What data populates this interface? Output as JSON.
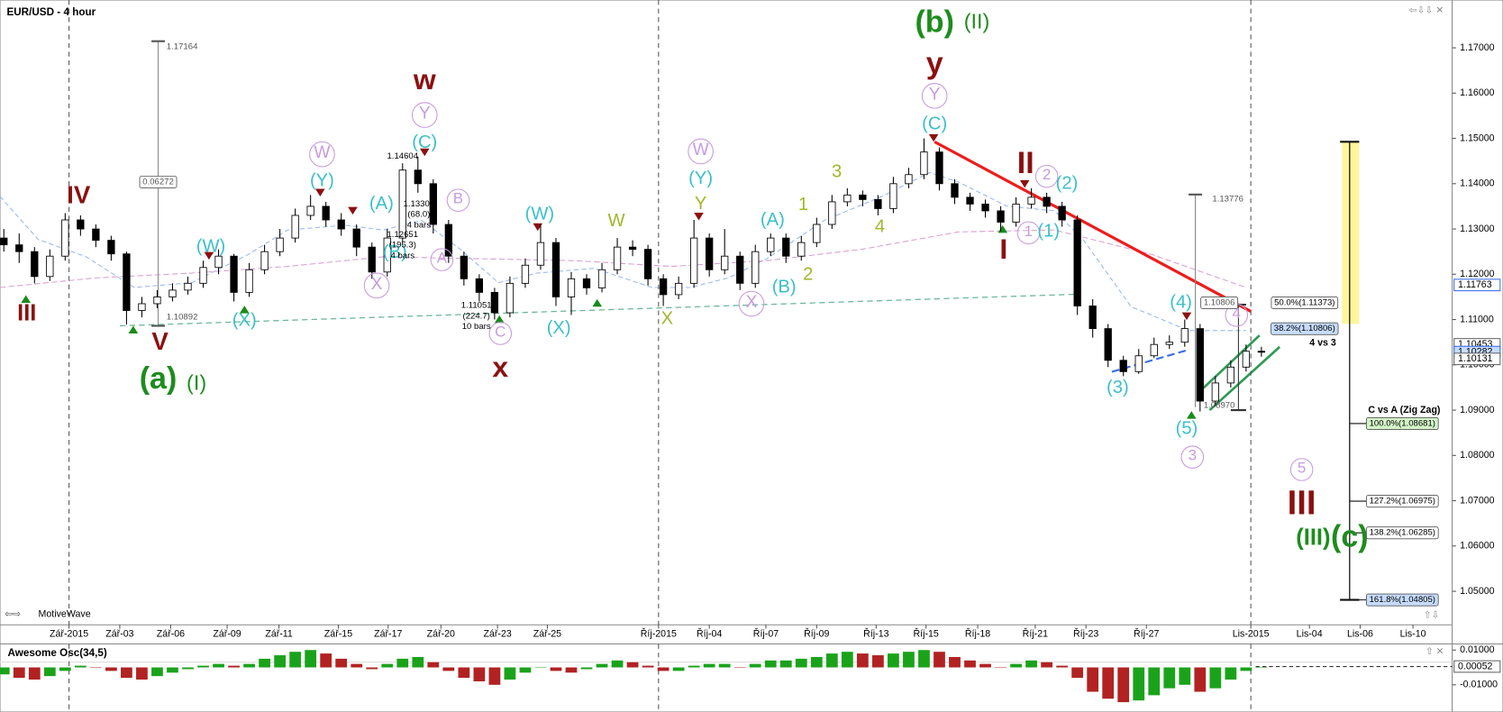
{
  "chart_data": {
    "type": "candlestick",
    "title": "EUR/USD - 4 hour",
    "watermark": "MotiveWave",
    "x": [
      0,
      1,
      2,
      3,
      4,
      5,
      6,
      7,
      8,
      9,
      10,
      11,
      12,
      13,
      14,
      15,
      16,
      17,
      18,
      19,
      20,
      21,
      22,
      23,
      24,
      25,
      26,
      27,
      28,
      29,
      30,
      31,
      32,
      33,
      34,
      35,
      36,
      37,
      38,
      39,
      40,
      41,
      42,
      43,
      44,
      45,
      46,
      47,
      48,
      49,
      50,
      51,
      52,
      53,
      54,
      55,
      56,
      57,
      58,
      59,
      60,
      61,
      62,
      63,
      64,
      65,
      66,
      67,
      68,
      69,
      70,
      71,
      72,
      73,
      74,
      75,
      76,
      77,
      78,
      79,
      80,
      81,
      82
    ],
    "open": [
      1.128,
      1.1265,
      1.125,
      1.1195,
      1.124,
      1.132,
      1.13,
      1.1275,
      1.1245,
      1.112,
      1.1135,
      1.115,
      1.1165,
      1.118,
      1.1215,
      1.124,
      1.116,
      1.121,
      1.125,
      1.128,
      1.133,
      1.135,
      1.132,
      1.13,
      1.126,
      1.1205,
      1.128,
      1.143,
      1.14,
      1.131,
      1.124,
      1.119,
      1.116,
      1.1115,
      1.118,
      1.122,
      1.127,
      1.115,
      1.119,
      1.117,
      1.121,
      1.126,
      1.1255,
      1.119,
      1.1155,
      1.118,
      1.128,
      1.121,
      1.124,
      1.118,
      1.125,
      1.128,
      1.124,
      1.127,
      1.131,
      1.136,
      1.1375,
      1.1365,
      1.1345,
      1.14,
      1.142,
      1.147,
      1.14,
      1.137,
      1.1355,
      1.134,
      1.1315,
      1.1355,
      1.137,
      1.135,
      1.132,
      1.113,
      1.108,
      1.101,
      1.0985,
      1.102,
      1.1045,
      1.105,
      1.108,
      1.092,
      1.096,
      1.0995,
      1.103
    ],
    "high": [
      1.13,
      1.129,
      1.126,
      1.1255,
      1.1335,
      1.133,
      1.131,
      1.1285,
      1.125,
      1.115,
      1.1165,
      1.118,
      1.1195,
      1.123,
      1.1255,
      1.1245,
      1.1225,
      1.1265,
      1.13,
      1.1345,
      1.1375,
      1.136,
      1.1335,
      1.131,
      1.127,
      1.13,
      1.1445,
      1.146,
      1.141,
      1.132,
      1.125,
      1.12,
      1.117,
      1.1195,
      1.1235,
      1.131,
      1.128,
      1.1205,
      1.12,
      1.1225,
      1.128,
      1.1275,
      1.1265,
      1.12,
      1.1195,
      1.132,
      1.129,
      1.13,
      1.125,
      1.1265,
      1.129,
      1.129,
      1.1285,
      1.1325,
      1.1375,
      1.139,
      1.1385,
      1.1375,
      1.1415,
      1.1435,
      1.15,
      1.148,
      1.141,
      1.138,
      1.1365,
      1.135,
      1.137,
      1.139,
      1.138,
      1.136,
      1.133,
      1.1145,
      1.109,
      1.102,
      1.1035,
      1.106,
      1.1065,
      1.11,
      1.109,
      1.0975,
      1.101,
      1.1045,
      1.104
    ],
    "low": [
      1.125,
      1.1225,
      1.118,
      1.1185,
      1.123,
      1.1285,
      1.126,
      1.123,
      1.1089,
      1.1105,
      1.1125,
      1.114,
      1.1155,
      1.117,
      1.12,
      1.114,
      1.115,
      1.12,
      1.124,
      1.127,
      1.132,
      1.1305,
      1.1285,
      1.124,
      1.119,
      1.1195,
      1.127,
      1.138,
      1.129,
      1.1225,
      1.1175,
      1.114,
      1.11,
      1.1105,
      1.117,
      1.121,
      1.113,
      1.111,
      1.1155,
      1.116,
      1.12,
      1.124,
      1.1175,
      1.113,
      1.1145,
      1.117,
      1.1195,
      1.12,
      1.1165,
      1.117,
      1.124,
      1.1225,
      1.123,
      1.126,
      1.13,
      1.135,
      1.135,
      1.133,
      1.1335,
      1.139,
      1.141,
      1.1385,
      1.1355,
      1.134,
      1.1325,
      1.1295,
      1.1305,
      1.1345,
      1.1335,
      1.1305,
      1.111,
      1.106,
      1.0995,
      1.0975,
      1.098,
      1.1015,
      1.1035,
      1.104,
      1.0897,
      1.091,
      1.095,
      1.0985,
      1.1018
    ],
    "close": [
      1.1265,
      1.125,
      1.1195,
      1.124,
      1.132,
      1.13,
      1.1275,
      1.1245,
      1.112,
      1.1135,
      1.115,
      1.1165,
      1.118,
      1.1215,
      1.124,
      1.116,
      1.121,
      1.125,
      1.128,
      1.133,
      1.135,
      1.132,
      1.13,
      1.126,
      1.1205,
      1.128,
      1.143,
      1.14,
      1.131,
      1.124,
      1.119,
      1.116,
      1.1115,
      1.118,
      1.122,
      1.127,
      1.115,
      1.119,
      1.117,
      1.121,
      1.126,
      1.1255,
      1.119,
      1.1155,
      1.118,
      1.128,
      1.121,
      1.124,
      1.118,
      1.125,
      1.128,
      1.124,
      1.127,
      1.131,
      1.136,
      1.1375,
      1.1365,
      1.1345,
      1.14,
      1.142,
      1.147,
      1.14,
      1.137,
      1.1355,
      1.134,
      1.1315,
      1.1355,
      1.137,
      1.135,
      1.132,
      1.113,
      1.108,
      1.101,
      1.0985,
      1.102,
      1.1045,
      1.105,
      1.108,
      1.092,
      1.096,
      1.0995,
      1.103,
      1.1028
    ],
    "up_color": "#ffffff",
    "down_color": "#000000",
    "xlim": [
      -0.25,
      94.44
    ],
    "xticks": [
      {
        "value": 4.25,
        "label": "Zář-2015"
      },
      {
        "value": 7.56,
        "label": "Zář-03"
      },
      {
        "value": 10.88,
        "label": "Zář-06"
      },
      {
        "value": 14.56,
        "label": "Zář-09"
      },
      {
        "value": 17.94,
        "label": "Zář-11"
      },
      {
        "value": 21.81,
        "label": "Zář-15"
      },
      {
        "value": 25.06,
        "label": "Zář-17"
      },
      {
        "value": 28.5,
        "label": "Zář-20"
      },
      {
        "value": 32.19,
        "label": "Zář-23"
      },
      {
        "value": 35.44,
        "label": "Zář-25"
      },
      {
        "value": 42.69,
        "label": "Říj-2015"
      },
      {
        "value": 46,
        "label": "Říj-04"
      },
      {
        "value": 49.69,
        "label": "Říj-07"
      },
      {
        "value": 53,
        "label": "Říj-09"
      },
      {
        "value": 56.88,
        "label": "Říj-13"
      },
      {
        "value": 60.13,
        "label": "Říj-15"
      },
      {
        "value": 63.5,
        "label": "Říj-18"
      },
      {
        "value": 67.25,
        "label": "Říj-21"
      },
      {
        "value": 70.56,
        "label": "Říj-23"
      },
      {
        "value": 74.5,
        "label": "Říj-27"
      },
      {
        "value": 81.31,
        "label": "Lis-2015"
      },
      {
        "value": 85.13,
        "label": "Lis-04"
      },
      {
        "value": 88.44,
        "label": "Lis-06"
      },
      {
        "value": 91.88,
        "label": "Lis-10"
      }
    ],
    "ylim": [
      1.0426,
      1.1795
    ],
    "yticks": [
      {
        "value": 1.05,
        "label": "1.05000"
      },
      {
        "value": 1.06,
        "label": "1.06000"
      },
      {
        "value": 1.07,
        "label": "1.07000"
      },
      {
        "value": 1.08,
        "label": "1.08000"
      },
      {
        "value": 1.09,
        "label": "1.09000"
      },
      {
        "value": 1.1,
        "label": "1.10000"
      },
      {
        "value": 1.11,
        "label": "1.11000"
      },
      {
        "value": 1.12,
        "label": "1.12000"
      },
      {
        "value": 1.13,
        "label": "1.13000"
      },
      {
        "value": 1.14,
        "label": "1.14000"
      },
      {
        "value": 1.15,
        "label": "1.15000"
      },
      {
        "value": 1.16,
        "label": "1.16000"
      },
      {
        "value": 1.17,
        "label": "1.17000"
      }
    ],
    "price_markers": [
      {
        "value": 1.11763,
        "label": "1.11763"
      },
      {
        "value": 1.10453,
        "label": "1.10453"
      },
      {
        "value": 1.10282,
        "label": "1.10282"
      },
      {
        "value": 1.10131,
        "label": "1.10131"
      }
    ],
    "annotations": [
      {
        "text": "IV",
        "color": "#8b1010"
      },
      {
        "text": "III",
        "color": "#8b1010"
      },
      {
        "text": "V",
        "color": "#8b1010"
      },
      {
        "text": "(a)",
        "color": "#1e8c1e"
      },
      {
        "text": "(I)",
        "color": "#1e8c1e"
      },
      {
        "text": "(W)",
        "color": "#3bbfc9"
      },
      {
        "text": "(X)",
        "color": "#3bbfc9"
      },
      {
        "text": "W",
        "color": "#c79be0"
      },
      {
        "text": "(Y)",
        "color": "#3bbfc9"
      },
      {
        "text": "X",
        "color": "#c79be0"
      },
      {
        "text": "(A)",
        "color": "#3bbfc9"
      },
      {
        "text": "(B)",
        "color": "#3bbfc9"
      },
      {
        "text": "w",
        "color": "#8b1010"
      },
      {
        "text": "Y",
        "color": "#c79be0"
      },
      {
        "text": "(C)",
        "color": "#3bbfc9"
      },
      {
        "text": "B",
        "color": "#c79be0"
      },
      {
        "text": "A",
        "color": "#c79be0"
      },
      {
        "text": "x",
        "color": "#8b1010"
      },
      {
        "text": "C",
        "color": "#c79be0"
      },
      {
        "text": "(W)",
        "color": "#3bbfc9"
      },
      {
        "text": "(X)",
        "color": "#3bbfc9"
      },
      {
        "text": "W",
        "color": "#a3b52a"
      },
      {
        "text": "X",
        "color": "#a3b52a"
      },
      {
        "text": "W",
        "color": "#c79be0"
      },
      {
        "text": "(Y)",
        "color": "#3bbfc9"
      },
      {
        "text": "Y",
        "color": "#a3b52a"
      },
      {
        "text": "(A)",
        "color": "#3bbfc9"
      },
      {
        "text": "X",
        "color": "#c79be0"
      },
      {
        "text": "(B)",
        "color": "#3bbfc9"
      },
      {
        "text": "1",
        "color": "#a3b52a"
      },
      {
        "text": "2",
        "color": "#a3b52a"
      },
      {
        "text": "3",
        "color": "#a3b52a"
      },
      {
        "text": "4",
        "color": "#a3b52a"
      },
      {
        "text": "(b)",
        "color": "#1e8c1e"
      },
      {
        "text": "(II)",
        "color": "#1e8c1e"
      },
      {
        "text": "y",
        "color": "#8b1010"
      },
      {
        "text": "Y",
        "color": "#c79be0"
      },
      {
        "text": "(C)",
        "color": "#3bbfc9"
      },
      {
        "text": "II",
        "color": "#8b1010"
      },
      {
        "text": "2",
        "color": "#c79be0"
      },
      {
        "text": "(2)",
        "color": "#3bbfc9"
      },
      {
        "text": "1",
        "color": "#c79be0"
      },
      {
        "text": "(1)",
        "color": "#3bbfc9"
      },
      {
        "text": "I",
        "color": "#8b1010"
      },
      {
        "text": "(3)",
        "color": "#3bbfc9"
      },
      {
        "text": "(4)",
        "color": "#3bbfc9"
      },
      {
        "text": "(5)",
        "color": "#3bbfc9"
      },
      {
        "text": "3",
        "color": "#c79be0"
      },
      {
        "text": "4",
        "color": "#c79be0"
      },
      {
        "text": "5",
        "color": "#c79be0"
      },
      {
        "text": "III",
        "color": "#8b1010"
      },
      {
        "text": "(III)",
        "color": "#1e8c1e"
      },
      {
        "text": "(c)",
        "color": "#1e8c1e"
      },
      {
        "text": "1.17164",
        "color": "#555555"
      },
      {
        "text": "0.06272",
        "color": "#555555"
      },
      {
        "text": "1.10892",
        "color": "#555555"
      },
      {
        "text": "1.14604",
        "color": "#000000"
      },
      {
        "text": "1.13301",
        "color": "#000000"
      },
      {
        "text": "(68.0)",
        "color": "#000000"
      },
      {
        "text": "4 bars",
        "color": "#000000"
      },
      {
        "text": "1.12651",
        "color": "#000000"
      },
      {
        "text": "(195.3)",
        "color": "#000000"
      },
      {
        "text": "4 bars",
        "color": "#000000"
      },
      {
        "text": "1.11051",
        "color": "#000000"
      },
      {
        "text": "(224.7)",
        "color": "#000000"
      },
      {
        "text": "10 bars",
        "color": "#000000"
      },
      {
        "text": "1.13776",
        "color": "#555555"
      },
      {
        "text": "1.10806",
        "color": "#555555"
      },
      {
        "text": "1.08970",
        "color": "#555555"
      },
      {
        "text": "50.0%(1.11373)",
        "color": "#000000"
      },
      {
        "text": "38.2%(1.10806)",
        "color": "#000000"
      },
      {
        "text": "4 vs 3",
        "color": "#000000"
      },
      {
        "text": "C vs A (Zig Zag)",
        "color": "#000000"
      },
      {
        "text": "100.0%(1.08681)",
        "color": "#000000"
      },
      {
        "text": "127.2%(1.06975)",
        "color": "#000000"
      },
      {
        "text": "138.2%(1.06285)",
        "color": "#000000"
      },
      {
        "text": "161.8%(1.04805)",
        "color": "#000000"
      }
    ],
    "oscillator": {
      "title": "Awesome Osc(34,5)",
      "values": [
        -0.004,
        -0.006,
        -0.007,
        -0.005,
        -0.002,
        0.001,
        0.0,
        -0.002,
        -0.006,
        -0.007,
        -0.005,
        -0.003,
        -0.001,
        0.001,
        0.002,
        0.001,
        0.002,
        0.005,
        0.007,
        0.009,
        0.01,
        0.008,
        0.005,
        0.002,
        -0.001,
        0.002,
        0.005,
        0.006,
        0.003,
        -0.002,
        -0.006,
        -0.008,
        -0.01,
        -0.007,
        -0.003,
        0.0,
        -0.002,
        -0.003,
        -0.001,
        0.002,
        0.004,
        0.003,
        0.001,
        -0.002,
        -0.002,
        0.001,
        0.002,
        0.002,
        0.0,
        0.002,
        0.004,
        0.004,
        0.005,
        0.006,
        0.008,
        0.009,
        0.008,
        0.007,
        0.008,
        0.009,
        0.01,
        0.009,
        0.006,
        0.004,
        0.002,
        0.0,
        0.002,
        0.004,
        0.003,
        0.001,
        -0.006,
        -0.014,
        -0.018,
        -0.02,
        -0.019,
        -0.016,
        -0.012,
        -0.01,
        -0.014,
        -0.012,
        -0.007,
        -0.002,
        0.0
      ],
      "up_color": "#1aa31a",
      "down_color": "#b22222",
      "ylim": [
        -0.024,
        0.0135
      ],
      "yticks": [
        {
          "value": 0.01,
          "label": "0.01000"
        },
        {
          "value": -0.01,
          "label": "-0.01000"
        }
      ],
      "marker": {
        "value": 0.00052,
        "label": "0.00052"
      }
    }
  }
}
